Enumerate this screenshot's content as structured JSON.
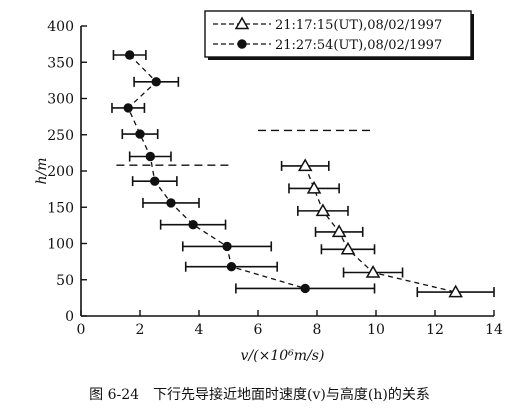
{
  "chart_data": {
    "type": "scatter",
    "xlabel": "v/(×10⁶m/s)",
    "ylabel": "h/m",
    "xlim": [
      0,
      14
    ],
    "ylim": [
      0,
      400
    ],
    "xticks": [
      0,
      2,
      4,
      6,
      8,
      10,
      12,
      14
    ],
    "xtick_labels": [
      "0",
      "2",
      "4",
      "6",
      "8",
      "10",
      "12",
      "14"
    ],
    "yticks": [
      0,
      50,
      100,
      150,
      200,
      250,
      300,
      350,
      400
    ],
    "ytick_labels": [
      "0",
      "50",
      "100",
      "150",
      "200",
      "250",
      "300",
      "350",
      "400"
    ],
    "legend_position": "top-right",
    "grid": false,
    "series": [
      {
        "name": "21:17:15(UT),08/02/1997",
        "marker": "open-triangle",
        "line": "dashed",
        "points": [
          {
            "y": 207,
            "x": 7.6,
            "xerr": 0.8
          },
          {
            "y": 176,
            "x": 7.9,
            "xerr": 0.85
          },
          {
            "y": 145,
            "x": 8.2,
            "xerr": 0.85
          },
          {
            "y": 116,
            "x": 8.75,
            "xerr": 0.8
          },
          {
            "y": 92,
            "x": 9.05,
            "xerr": 0.9
          },
          {
            "y": 60,
            "x": 9.9,
            "xerr": 1.0
          },
          {
            "y": 33,
            "x": 12.7,
            "xerr": 1.3
          }
        ]
      },
      {
        "name": "21:27:54(UT),08/02/1997",
        "marker": "filled-circle",
        "line": "dashed",
        "points": [
          {
            "y": 360,
            "x": 1.65,
            "xerr": 0.55
          },
          {
            "y": 323,
            "x": 2.55,
            "xerr": 0.75
          },
          {
            "y": 287,
            "x": 1.6,
            "xerr": 0.55
          },
          {
            "y": 251,
            "x": 2.0,
            "xerr": 0.6
          },
          {
            "y": 220,
            "x": 2.35,
            "xerr": 0.7
          },
          {
            "y": 186,
            "x": 2.5,
            "xerr": 0.75
          },
          {
            "y": 156,
            "x": 3.05,
            "xerr": 0.95
          },
          {
            "y": 126,
            "x": 3.8,
            "xerr": 1.1
          },
          {
            "y": 96,
            "x": 4.95,
            "xerr": 1.5
          },
          {
            "y": 68,
            "x": 5.1,
            "xerr": 1.55
          },
          {
            "y": 38,
            "x": 7.6,
            "xerr": 2.35
          }
        ]
      }
    ],
    "reference_lines": [
      {
        "y": 208,
        "x1": 1.2,
        "x2": 5.1
      },
      {
        "y": 256,
        "x1": 6.0,
        "x2": 9.8
      }
    ]
  },
  "caption": {
    "number": "图 6-24",
    "text": "下行先导接近地面时速度(v)与高度(h)的关系"
  }
}
